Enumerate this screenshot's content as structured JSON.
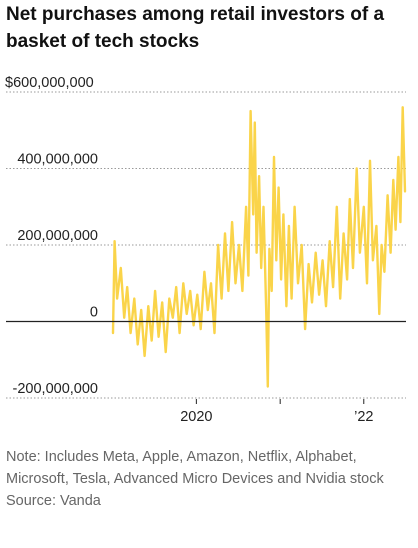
{
  "chart_data": {
    "type": "line",
    "title": "Net purchases among retail investors of a basket of tech stocks",
    "xlabel": "",
    "ylabel": "",
    "x_range": [
      "2019-01-02",
      "2022-06-30"
    ],
    "ylim": [
      -200000000,
      600000000
    ],
    "y_ticks": [
      {
        "value": 600000000,
        "label": "$600,000,000"
      },
      {
        "value": 400000000,
        "label": "400,000,000"
      },
      {
        "value": 200000000,
        "label": "200,000,000"
      },
      {
        "value": 0,
        "label": "0"
      },
      {
        "value": -200000000,
        "label": "-200,000,000"
      }
    ],
    "x_ticks": [
      {
        "date": "2020-01-01",
        "label": "2020"
      },
      {
        "date": "2021-01-01",
        "label": ""
      },
      {
        "date": "2022-01-01",
        "label": "’22"
      }
    ],
    "grid": "horizontal dashed",
    "line_color": "#fad44a",
    "series": [
      {
        "values": [
          {
            "date": "2019-01-02",
            "value": -30000000
          },
          {
            "date": "2019-01-09",
            "value": 210000000
          },
          {
            "date": "2019-01-20",
            "value": 60000000
          },
          {
            "date": "2019-02-05",
            "value": 140000000
          },
          {
            "date": "2019-02-20",
            "value": 10000000
          },
          {
            "date": "2019-03-05",
            "value": 90000000
          },
          {
            "date": "2019-03-20",
            "value": -30000000
          },
          {
            "date": "2019-04-05",
            "value": 60000000
          },
          {
            "date": "2019-04-20",
            "value": -60000000
          },
          {
            "date": "2019-05-05",
            "value": 30000000
          },
          {
            "date": "2019-05-20",
            "value": -90000000
          },
          {
            "date": "2019-06-05",
            "value": 40000000
          },
          {
            "date": "2019-06-20",
            "value": -50000000
          },
          {
            "date": "2019-07-05",
            "value": 80000000
          },
          {
            "date": "2019-07-20",
            "value": -40000000
          },
          {
            "date": "2019-08-05",
            "value": 50000000
          },
          {
            "date": "2019-08-20",
            "value": -80000000
          },
          {
            "date": "2019-09-05",
            "value": 60000000
          },
          {
            "date": "2019-09-20",
            "value": 10000000
          },
          {
            "date": "2019-10-05",
            "value": 90000000
          },
          {
            "date": "2019-10-20",
            "value": -30000000
          },
          {
            "date": "2019-11-05",
            "value": 100000000
          },
          {
            "date": "2019-11-20",
            "value": 20000000
          },
          {
            "date": "2019-12-05",
            "value": 80000000
          },
          {
            "date": "2019-12-20",
            "value": -10000000
          },
          {
            "date": "2020-01-05",
            "value": 70000000
          },
          {
            "date": "2020-01-20",
            "value": -20000000
          },
          {
            "date": "2020-02-05",
            "value": 130000000
          },
          {
            "date": "2020-02-20",
            "value": 30000000
          },
          {
            "date": "2020-03-05",
            "value": 100000000
          },
          {
            "date": "2020-03-20",
            "value": -30000000
          },
          {
            "date": "2020-04-05",
            "value": 200000000
          },
          {
            "date": "2020-04-20",
            "value": 60000000
          },
          {
            "date": "2020-05-05",
            "value": 230000000
          },
          {
            "date": "2020-05-20",
            "value": 80000000
          },
          {
            "date": "2020-06-05",
            "value": 260000000
          },
          {
            "date": "2020-06-20",
            "value": 100000000
          },
          {
            "date": "2020-07-05",
            "value": 200000000
          },
          {
            "date": "2020-07-20",
            "value": 80000000
          },
          {
            "date": "2020-08-05",
            "value": 300000000
          },
          {
            "date": "2020-08-15",
            "value": 120000000
          },
          {
            "date": "2020-08-25",
            "value": 550000000
          },
          {
            "date": "2020-09-05",
            "value": 280000000
          },
          {
            "date": "2020-09-12",
            "value": 520000000
          },
          {
            "date": "2020-09-20",
            "value": 180000000
          },
          {
            "date": "2020-10-01",
            "value": 380000000
          },
          {
            "date": "2020-10-10",
            "value": 140000000
          },
          {
            "date": "2020-10-20",
            "value": 300000000
          },
          {
            "date": "2020-11-01",
            "value": 30000000
          },
          {
            "date": "2020-11-08",
            "value": -170000000
          },
          {
            "date": "2020-11-15",
            "value": 190000000
          },
          {
            "date": "2020-11-25",
            "value": 80000000
          },
          {
            "date": "2020-12-05",
            "value": 430000000
          },
          {
            "date": "2020-12-15",
            "value": 160000000
          },
          {
            "date": "2020-12-25",
            "value": 350000000
          },
          {
            "date": "2021-01-05",
            "value": 110000000
          },
          {
            "date": "2021-01-15",
            "value": 280000000
          },
          {
            "date": "2021-01-28",
            "value": 40000000
          },
          {
            "date": "2021-02-08",
            "value": 250000000
          },
          {
            "date": "2021-02-20",
            "value": 60000000
          },
          {
            "date": "2021-03-05",
            "value": 300000000
          },
          {
            "date": "2021-03-20",
            "value": 100000000
          },
          {
            "date": "2021-04-05",
            "value": 200000000
          },
          {
            "date": "2021-04-20",
            "value": -20000000
          },
          {
            "date": "2021-05-05",
            "value": 150000000
          },
          {
            "date": "2021-05-20",
            "value": 50000000
          },
          {
            "date": "2021-06-05",
            "value": 180000000
          },
          {
            "date": "2021-06-20",
            "value": 70000000
          },
          {
            "date": "2021-07-05",
            "value": 160000000
          },
          {
            "date": "2021-07-20",
            "value": 40000000
          },
          {
            "date": "2021-08-05",
            "value": 210000000
          },
          {
            "date": "2021-08-20",
            "value": 90000000
          },
          {
            "date": "2021-09-05",
            "value": 300000000
          },
          {
            "date": "2021-09-20",
            "value": 60000000
          },
          {
            "date": "2021-10-05",
            "value": 230000000
          },
          {
            "date": "2021-10-20",
            "value": 110000000
          },
          {
            "date": "2021-11-01",
            "value": 320000000
          },
          {
            "date": "2021-11-15",
            "value": 140000000
          },
          {
            "date": "2021-12-01",
            "value": 400000000
          },
          {
            "date": "2021-12-15",
            "value": 180000000
          },
          {
            "date": "2022-01-01",
            "value": 300000000
          },
          {
            "date": "2022-01-15",
            "value": 100000000
          },
          {
            "date": "2022-01-28",
            "value": 420000000
          },
          {
            "date": "2022-02-10",
            "value": 160000000
          },
          {
            "date": "2022-02-25",
            "value": 250000000
          },
          {
            "date": "2022-03-10",
            "value": 20000000
          },
          {
            "date": "2022-03-20",
            "value": 200000000
          },
          {
            "date": "2022-04-01",
            "value": 130000000
          },
          {
            "date": "2022-04-15",
            "value": 330000000
          },
          {
            "date": "2022-04-28",
            "value": 180000000
          },
          {
            "date": "2022-05-10",
            "value": 370000000
          },
          {
            "date": "2022-05-20",
            "value": 240000000
          },
          {
            "date": "2022-06-01",
            "value": 430000000
          },
          {
            "date": "2022-06-10",
            "value": 260000000
          },
          {
            "date": "2022-06-20",
            "value": 560000000
          },
          {
            "date": "2022-06-30",
            "value": 340000000
          }
        ]
      }
    ]
  },
  "notes": {
    "note": "Note: Includes Meta, Apple, Amazon, Netflix, Alphabet, Microsoft, Tesla, Advanced Micro Devices and Nvidia stock",
    "source": "Source: Vanda"
  }
}
